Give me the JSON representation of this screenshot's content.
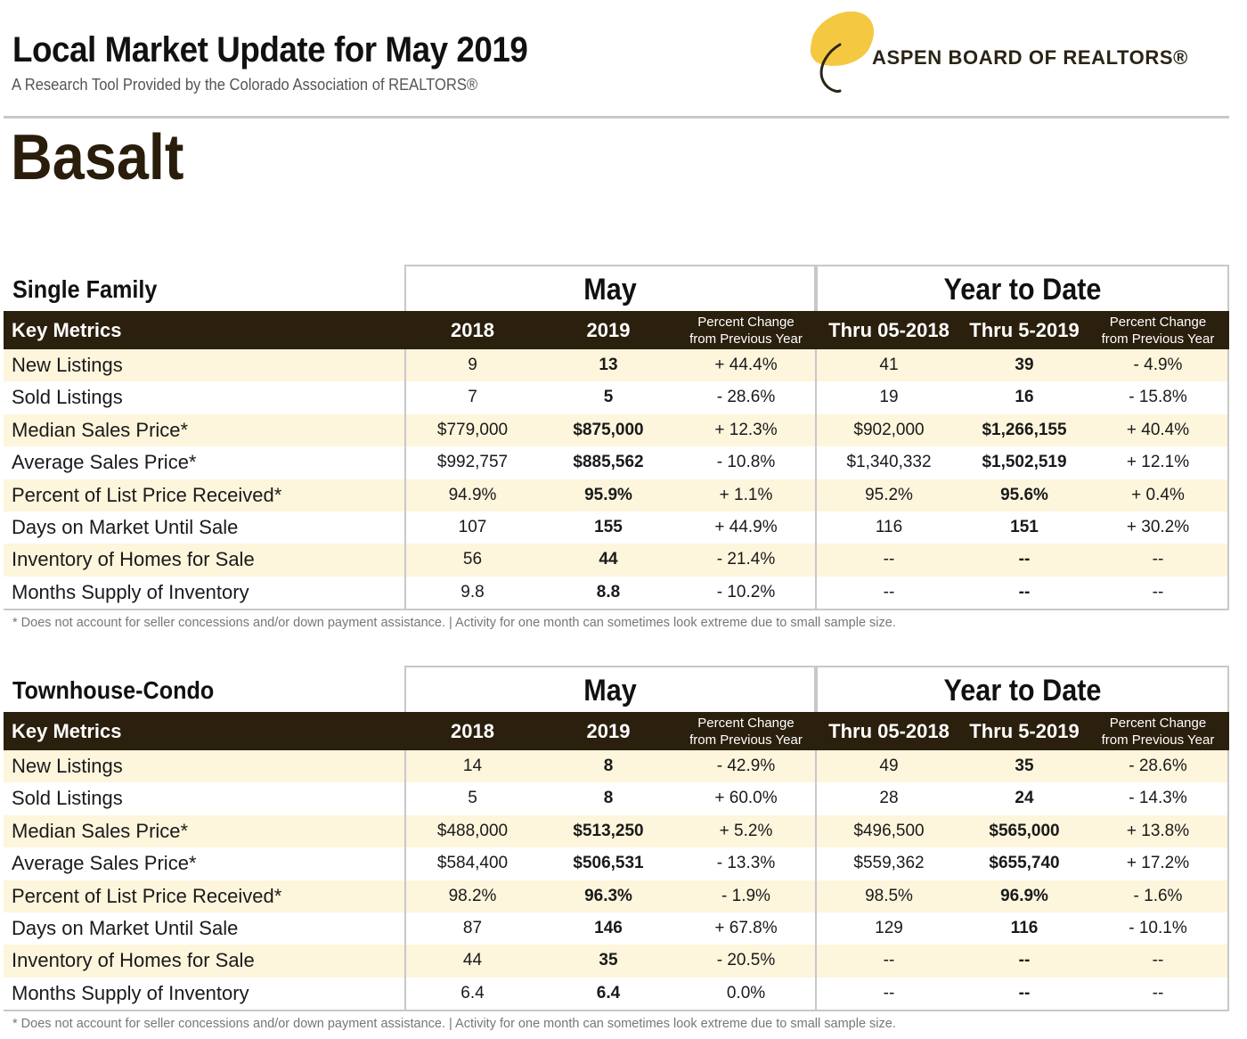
{
  "header": {
    "title": "Local Market Update for May 2019",
    "subtitle": "A Research Tool Provided by the Colorado Association of REALTORS®",
    "logo_text": "ASPEN BOARD OF REALTORS®",
    "logo_leaf_color": "#f5c842"
  },
  "city": "Basalt",
  "columns": {
    "key_metrics": "Key Metrics",
    "may_group": "May",
    "ytd_group": "Year to Date",
    "c2018": "2018",
    "c2019": "2019",
    "pct_line1": "Percent Change",
    "pct_line2": "from Previous Year",
    "thru2018": "Thru 05-2018",
    "thru2019": "Thru 5-2019"
  },
  "sections": [
    {
      "label": "Single Family",
      "rows": [
        {
          "metric": "New Listings",
          "v2018": "9",
          "v2019": "13",
          "pct": "+ 44.4%",
          "y2018": "41",
          "y2019": "39",
          "ypct": "- 4.9%"
        },
        {
          "metric": "Sold Listings",
          "v2018": "7",
          "v2019": "5",
          "pct": "- 28.6%",
          "y2018": "19",
          "y2019": "16",
          "ypct": "- 15.8%"
        },
        {
          "metric": "Median Sales Price*",
          "v2018": "$779,000",
          "v2019": "$875,000",
          "pct": "+ 12.3%",
          "y2018": "$902,000",
          "y2019": "$1,266,155",
          "ypct": "+ 40.4%"
        },
        {
          "metric": "Average Sales Price*",
          "v2018": "$992,757",
          "v2019": "$885,562",
          "pct": "- 10.8%",
          "y2018": "$1,340,332",
          "y2019": "$1,502,519",
          "ypct": "+ 12.1%"
        },
        {
          "metric": "Percent of List Price Received*",
          "v2018": "94.9%",
          "v2019": "95.9%",
          "pct": "+ 1.1%",
          "y2018": "95.2%",
          "y2019": "95.6%",
          "ypct": "+ 0.4%"
        },
        {
          "metric": "Days on Market Until Sale",
          "v2018": "107",
          "v2019": "155",
          "pct": "+ 44.9%",
          "y2018": "116",
          "y2019": "151",
          "ypct": "+ 30.2%"
        },
        {
          "metric": "Inventory of Homes for Sale",
          "v2018": "56",
          "v2019": "44",
          "pct": "- 21.4%",
          "y2018": "--",
          "y2019": "--",
          "ypct": "--"
        },
        {
          "metric": "Months Supply of Inventory",
          "v2018": "9.8",
          "v2019": "8.8",
          "pct": "- 10.2%",
          "y2018": "--",
          "y2019": "--",
          "ypct": "--"
        }
      ],
      "note": "* Does not account for seller concessions and/or down payment assistance.  |  Activity for one month can sometimes look extreme due to small sample size."
    },
    {
      "label": "Townhouse-Condo",
      "rows": [
        {
          "metric": "New Listings",
          "v2018": "14",
          "v2019": "8",
          "pct": "- 42.9%",
          "y2018": "49",
          "y2019": "35",
          "ypct": "- 28.6%"
        },
        {
          "metric": "Sold Listings",
          "v2018": "5",
          "v2019": "8",
          "pct": "+ 60.0%",
          "y2018": "28",
          "y2019": "24",
          "ypct": "- 14.3%"
        },
        {
          "metric": "Median Sales Price*",
          "v2018": "$488,000",
          "v2019": "$513,250",
          "pct": "+ 5.2%",
          "y2018": "$496,500",
          "y2019": "$565,000",
          "ypct": "+ 13.8%"
        },
        {
          "metric": "Average Sales Price*",
          "v2018": "$584,400",
          "v2019": "$506,531",
          "pct": "- 13.3%",
          "y2018": "$559,362",
          "y2019": "$655,740",
          "ypct": "+ 17.2%"
        },
        {
          "metric": "Percent of List Price Received*",
          "v2018": "98.2%",
          "v2019": "96.3%",
          "pct": "- 1.9%",
          "y2018": "98.5%",
          "y2019": "96.9%",
          "ypct": "- 1.6%"
        },
        {
          "metric": "Days on Market Until Sale",
          "v2018": "87",
          "v2019": "146",
          "pct": "+ 67.8%",
          "y2018": "129",
          "y2019": "116",
          "ypct": "- 10.1%"
        },
        {
          "metric": "Inventory of Homes for Sale",
          "v2018": "44",
          "v2019": "35",
          "pct": "- 20.5%",
          "y2018": "--",
          "y2019": "--",
          "ypct": "--"
        },
        {
          "metric": "Months Supply of Inventory",
          "v2018": "6.4",
          "v2019": "6.4",
          "pct": "0.0%",
          "y2018": "--",
          "y2019": "--",
          "ypct": "--"
        }
      ],
      "note": "* Does not account for seller concessions and/or down payment assistance.  |  Activity for one month can sometimes look extreme due to small sample size."
    }
  ]
}
